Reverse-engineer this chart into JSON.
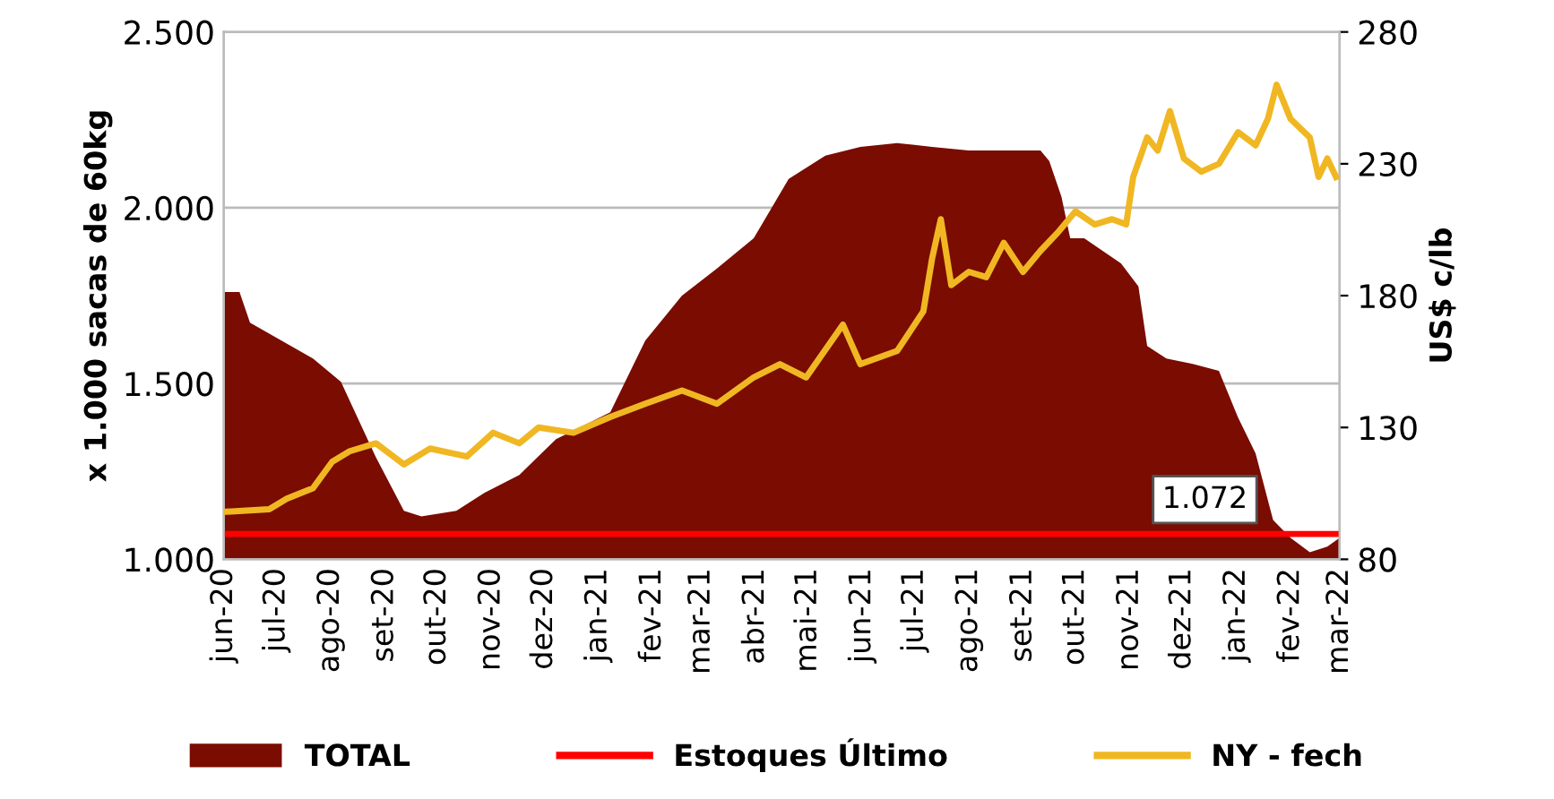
{
  "chart_data": {
    "type": "area",
    "ylabel": "x 1.000 sacas de 60kg",
    "y2label": "US$ c/lb",
    "xlim": [
      "2020-06-01",
      "2022-03-01"
    ],
    "xticks": [
      {
        "value": "2020-06",
        "label": "jun-20"
      },
      {
        "value": "2020-07",
        "label": "jul-20"
      },
      {
        "value": "2020-08",
        "label": "ago-20"
      },
      {
        "value": "2020-09",
        "label": "set-20"
      },
      {
        "value": "2020-10",
        "label": "out-20"
      },
      {
        "value": "2020-11",
        "label": "nov-20"
      },
      {
        "value": "2020-12",
        "label": "dez-20"
      },
      {
        "value": "2021-01",
        "label": "jan-21"
      },
      {
        "value": "2021-02",
        "label": "fev-21"
      },
      {
        "value": "2021-03",
        "label": "mar-21"
      },
      {
        "value": "2021-04",
        "label": "abr-21"
      },
      {
        "value": "2021-05",
        "label": "mai-21"
      },
      {
        "value": "2021-06",
        "label": "jun-21"
      },
      {
        "value": "2021-07",
        "label": "jul-21"
      },
      {
        "value": "2021-08",
        "label": "ago-21"
      },
      {
        "value": "2021-09",
        "label": "set-21"
      },
      {
        "value": "2021-10",
        "label": "out-21"
      },
      {
        "value": "2021-11",
        "label": "nov-21"
      },
      {
        "value": "2021-12",
        "label": "dez-21"
      },
      {
        "value": "2022-01",
        "label": "jan-22"
      },
      {
        "value": "2022-02",
        "label": "fev-22"
      },
      {
        "value": "2022-03",
        "label": "mar-22"
      }
    ],
    "ylim": [
      1000,
      2500
    ],
    "yticks": [
      {
        "value": 1000,
        "label": "1.000"
      },
      {
        "value": 1500,
        "label": "1.500"
      },
      {
        "value": 2000,
        "label": "2.000"
      },
      {
        "value": 2500,
        "label": "2.500"
      }
    ],
    "y2lim": [
      80,
      280
    ],
    "y2ticks": [
      80,
      130,
      180,
      230,
      280
    ],
    "grid": "y",
    "legend": "bottom",
    "series": [
      {
        "name": "TOTAL",
        "color": "#7a0c02",
        "x": [
          "2020-06-01",
          "2020-06-10",
          "2020-06-16",
          "2020-07-22",
          "2020-08-07",
          "2020-08-27",
          "2020-09-12",
          "2020-09-22",
          "2020-10-12",
          "2020-10-28",
          "2020-11-17",
          "2020-12-08",
          "2021-01-08",
          "2021-01-28",
          "2021-02-18",
          "2021-03-10",
          "2021-03-31",
          "2021-04-20",
          "2021-05-11",
          "2021-05-31",
          "2021-06-21",
          "2021-07-11",
          "2021-08-01",
          "2021-08-21",
          "2021-09-11",
          "2021-09-16",
          "2021-09-23",
          "2021-09-28",
          "2021-10-06",
          "2021-10-27",
          "2021-11-06",
          "2021-11-11",
          "2021-11-22",
          "2021-12-07",
          "2021-12-22",
          "2022-01-02",
          "2022-01-12",
          "2022-01-22",
          "2022-02-01",
          "2022-02-12",
          "2022-02-22",
          "2022-03-01"
        ],
        "values": [
          1760,
          1760,
          1673,
          1571,
          1505,
          1290,
          1138,
          1122,
          1138,
          1189,
          1240,
          1342,
          1418,
          1622,
          1750,
          1827,
          1913,
          2082,
          2148,
          2173,
          2184,
          2173,
          2163,
          2163,
          2163,
          2133,
          2031,
          1913,
          1913,
          1842,
          1776,
          1607,
          1571,
          1556,
          1536,
          1403,
          1301,
          1112,
          1061,
          1020,
          1036,
          1061
        ]
      },
      {
        "name": "Estoques Último",
        "type": "line",
        "color": "#ff0000",
        "x": [
          "2020-06-01",
          "2022-03-01"
        ],
        "values": [
          1072,
          1072
        ]
      },
      {
        "name": "NY - fech",
        "type": "line",
        "color": "#f0b722",
        "axis": "y2",
        "x": [
          "2020-06-01",
          "2020-06-27",
          "2020-07-07",
          "2020-07-22",
          "2020-08-02",
          "2020-08-12",
          "2020-08-27",
          "2020-09-12",
          "2020-09-27",
          "2020-10-18",
          "2020-11-02",
          "2020-11-17",
          "2020-11-28",
          "2020-12-18",
          "2021-01-08",
          "2021-01-28",
          "2021-02-18",
          "2021-03-10",
          "2021-03-31",
          "2021-04-15",
          "2021-04-30",
          "2021-05-21",
          "2021-05-31",
          "2021-06-21",
          "2021-07-06",
          "2021-07-11",
          "2021-07-16",
          "2021-07-22",
          "2021-08-01",
          "2021-08-11",
          "2021-08-21",
          "2021-09-01",
          "2021-09-11",
          "2021-09-21",
          "2021-10-01",
          "2021-10-12",
          "2021-10-22",
          "2021-10-30",
          "2021-11-03",
          "2021-11-11",
          "2021-11-17",
          "2021-11-24",
          "2021-12-02",
          "2021-12-12",
          "2021-12-22",
          "2022-01-02",
          "2022-01-12",
          "2022-01-19",
          "2022-01-24",
          "2022-02-01",
          "2022-02-12",
          "2022-02-17",
          "2022-02-22",
          "2022-02-27"
        ],
        "values": [
          98,
          99,
          103,
          107,
          117,
          121,
          124,
          116,
          122,
          119,
          128,
          124,
          130,
          128,
          134,
          139,
          144,
          139,
          149,
          154,
          149,
          169,
          154,
          159,
          174,
          194,
          209,
          184,
          189,
          187,
          200,
          189,
          197,
          204,
          212,
          207,
          209,
          207,
          225,
          240,
          235,
          250,
          232,
          227,
          230,
          242,
          237,
          247,
          260,
          247,
          240,
          225,
          232,
          225
        ]
      }
    ],
    "annotations": [
      {
        "text": "1.072",
        "x": "2021-12-14",
        "y": 1072
      }
    ]
  }
}
